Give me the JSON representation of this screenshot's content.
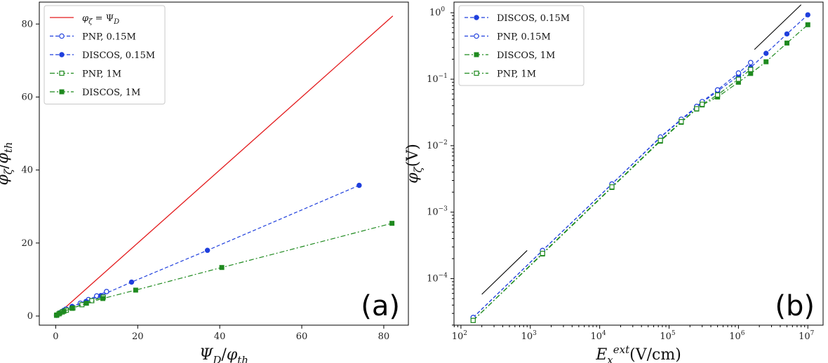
{
  "chart_data": [
    {
      "type": "line",
      "panel_tag": "(a)",
      "xlabel": "Ψ_D/φ_th",
      "ylabel": "φ_ζ/φ_th",
      "xlim": [
        -4,
        86
      ],
      "ylim": [
        -2.5,
        86
      ],
      "xticks": [
        0,
        20,
        40,
        60,
        80
      ],
      "yticks": [
        0,
        20,
        40,
        60,
        80
      ],
      "legend_position": "top-left",
      "series": [
        {
          "name": "φ_ζ = Ψ_D",
          "color": "#e31a1c",
          "style": "solid",
          "marker": "none",
          "x": [
            0,
            82.2
          ],
          "y": [
            0,
            82.2
          ]
        },
        {
          "name": "PNP, 0.15M",
          "color": "#1f3fdd",
          "style": "dashed",
          "marker": "open-circle",
          "x": [
            0.2,
            0.8,
            1.5,
            2.5,
            4,
            6,
            8,
            10,
            12.4
          ],
          "y": [
            0.2,
            0.7,
            1.2,
            1.9,
            2.6,
            3.5,
            4.5,
            5.5,
            6.7
          ]
        },
        {
          "name": "DISCOS, 0.15M",
          "color": "#1f3fdd",
          "style": "dashed",
          "marker": "filled-circle",
          "x": [
            0.3,
            1.0,
            2.0,
            4.0,
            7.4,
            11.0,
            18.5,
            37.0,
            74.0
          ],
          "y": [
            0.3,
            0.9,
            1.6,
            2.6,
            4.0,
            5.6,
            9.3,
            18.0,
            35.8
          ]
        },
        {
          "name": "PNP, 1M",
          "color": "#1f8a1f",
          "style": "dashdot",
          "marker": "open-square",
          "x": [
            0.2,
            0.8,
            1.6,
            2.6,
            4.2,
            6.4,
            8.8,
            11.6
          ],
          "y": [
            0.2,
            0.6,
            1.1,
            1.6,
            2.2,
            3.1,
            4.2,
            5.2
          ]
        },
        {
          "name": "DISCOS, 1M",
          "color": "#1f8a1f",
          "style": "dashdot",
          "marker": "filled-square",
          "x": [
            0.3,
            1.0,
            2.0,
            4.0,
            7.5,
            11.5,
            19.5,
            40.5,
            82.0
          ],
          "y": [
            0.3,
            0.8,
            1.3,
            2.1,
            3.5,
            4.8,
            7.1,
            13.3,
            25.4
          ]
        }
      ]
    },
    {
      "type": "line",
      "panel_tag": "(b)",
      "xlabel": "E_x^ext(V/cm)",
      "ylabel": "φ_ζ(V)",
      "x_scale": "log",
      "y_scale": "log",
      "xlim_log10": [
        1.9,
        7.22
      ],
      "ylim_log10": [
        -4.7,
        0.16
      ],
      "xticks_log10": [
        2,
        3,
        4,
        5,
        6,
        7
      ],
      "yticks_log10": [
        -4,
        -3,
        -2,
        -1,
        0
      ],
      "legend_position": "top-left",
      "reference_lines": [
        {
          "x": [
            200,
            900
          ],
          "y": [
            5.8e-05,
            0.000265
          ]
        },
        {
          "x": [
            1700000,
            8000000
          ],
          "y": [
            0.28,
            1.32
          ]
        }
      ],
      "series": [
        {
          "name": "DISCOS, 0.15M",
          "color": "#1f3fdd",
          "style": "dashed",
          "marker": "filled-circle",
          "x": [
            150,
            1500,
            15000,
            75000,
            150000,
            250000,
            300000,
            500000,
            1000000,
            1500000,
            2500000,
            5000000,
            10000000
          ],
          "y": [
            2.6e-05,
            0.000265,
            0.00265,
            0.0133,
            0.0245,
            0.0375,
            0.0445,
            0.066,
            0.112,
            0.15,
            0.245,
            0.48,
            0.93
          ]
        },
        {
          "name": "PNP, 0.15M",
          "color": "#1f3fdd",
          "style": "dashed",
          "marker": "open-circle",
          "x": [
            150,
            1500,
            15000,
            75000,
            150000,
            250000,
            300000,
            500000,
            1000000,
            1500000
          ],
          "y": [
            2.6e-05,
            0.000265,
            0.00265,
            0.0135,
            0.025,
            0.039,
            0.046,
            0.069,
            0.124,
            0.178
          ]
        },
        {
          "name": "DISCOS, 1M",
          "color": "#1f8a1f",
          "style": "dashdot",
          "marker": "filled-square",
          "x": [
            150,
            1500,
            15000,
            75000,
            150000,
            250000,
            300000,
            500000,
            1000000,
            1500000,
            2500000,
            5000000,
            10000000
          ],
          "y": [
            2.35e-05,
            0.000235,
            0.00235,
            0.0117,
            0.0225,
            0.0355,
            0.041,
            0.054,
            0.09,
            0.122,
            0.183,
            0.35,
            0.66
          ]
        },
        {
          "name": "PNP, 1M",
          "color": "#1f8a1f",
          "style": "dashdot",
          "marker": "open-square",
          "x": [
            150,
            1500,
            15000,
            75000,
            150000,
            250000,
            300000,
            500000,
            1000000,
            1500000
          ],
          "y": [
            2.35e-05,
            0.00024,
            0.0024,
            0.012,
            0.023,
            0.036,
            0.042,
            0.058,
            0.1,
            0.14
          ]
        }
      ]
    }
  ]
}
